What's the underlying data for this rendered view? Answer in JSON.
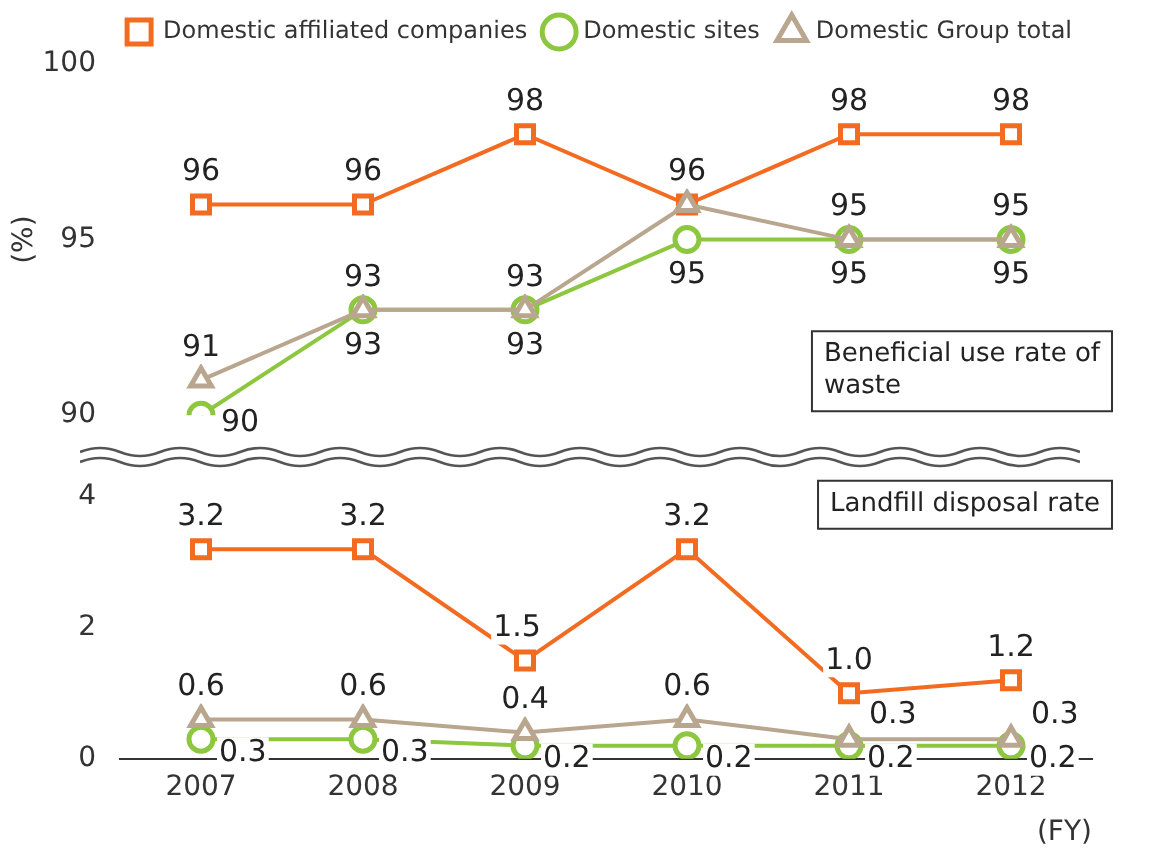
{
  "chart_data": [
    {
      "type": "line",
      "ylabel": "(%)",
      "categories": [
        "2007",
        "2008",
        "2009",
        "2010",
        "2011",
        "2012"
      ],
      "ylim": [
        90,
        100
      ],
      "yticks": [
        90,
        95,
        100
      ],
      "tick_labels": "y",
      "grid": false,
      "legend": "top",
      "annotations": [
        "Beneficial use rate of waste"
      ],
      "series": [
        {
          "name": "Domestic affiliated companies",
          "color": "#f26b21",
          "marker": "square",
          "values": [
            96,
            96,
            98,
            96,
            98,
            98
          ],
          "value_labels": [
            "96",
            "96",
            "98",
            "96",
            "98",
            "98"
          ]
        },
        {
          "name": "Domestic sites",
          "color": "#8dc63f",
          "marker": "circle",
          "values": [
            90,
            93,
            93,
            95,
            95,
            95
          ],
          "value_labels": [
            "90",
            "93",
            "93",
            "95",
            "95",
            "95"
          ]
        },
        {
          "name": "Domestic Group total",
          "color": "#b9a68e",
          "marker": "triangle",
          "values": [
            91,
            93,
            93,
            96,
            95,
            95
          ],
          "value_labels": [
            "91",
            "93",
            "93",
            null,
            "95",
            "95"
          ]
        }
      ]
    },
    {
      "type": "line",
      "xlabel": "(FY)",
      "categories": [
        "2007",
        "2008",
        "2009",
        "2010",
        "2011",
        "2012"
      ],
      "ylim": [
        0,
        4
      ],
      "yticks": [
        0,
        2,
        4
      ],
      "grid": false,
      "legend": false,
      "annotations": [
        "Landfill disposal rate"
      ],
      "series": [
        {
          "color": "#f26b21",
          "marker": "square",
          "values": [
            3.2,
            3.2,
            1.5,
            3.2,
            1.0,
            1.2
          ],
          "value_labels": [
            "3.2",
            "3.2",
            "1.5",
            "3.2",
            "1.0",
            "1.2"
          ]
        },
        {
          "color": "#8dc63f",
          "marker": "circle",
          "values": [
            0.3,
            0.3,
            0.2,
            0.2,
            0.2,
            0.2
          ],
          "value_labels": [
            "0.3",
            "0.3",
            "0.2",
            "0.2",
            "0.2",
            "0.2"
          ]
        },
        {
          "color": "#b9a68e",
          "marker": "triangle",
          "values": [
            0.6,
            0.6,
            0.4,
            0.6,
            0.3,
            0.3
          ],
          "value_labels": [
            "0.6",
            "0.6",
            "0.4",
            "0.6",
            "0.3",
            "0.3"
          ]
        }
      ]
    }
  ]
}
